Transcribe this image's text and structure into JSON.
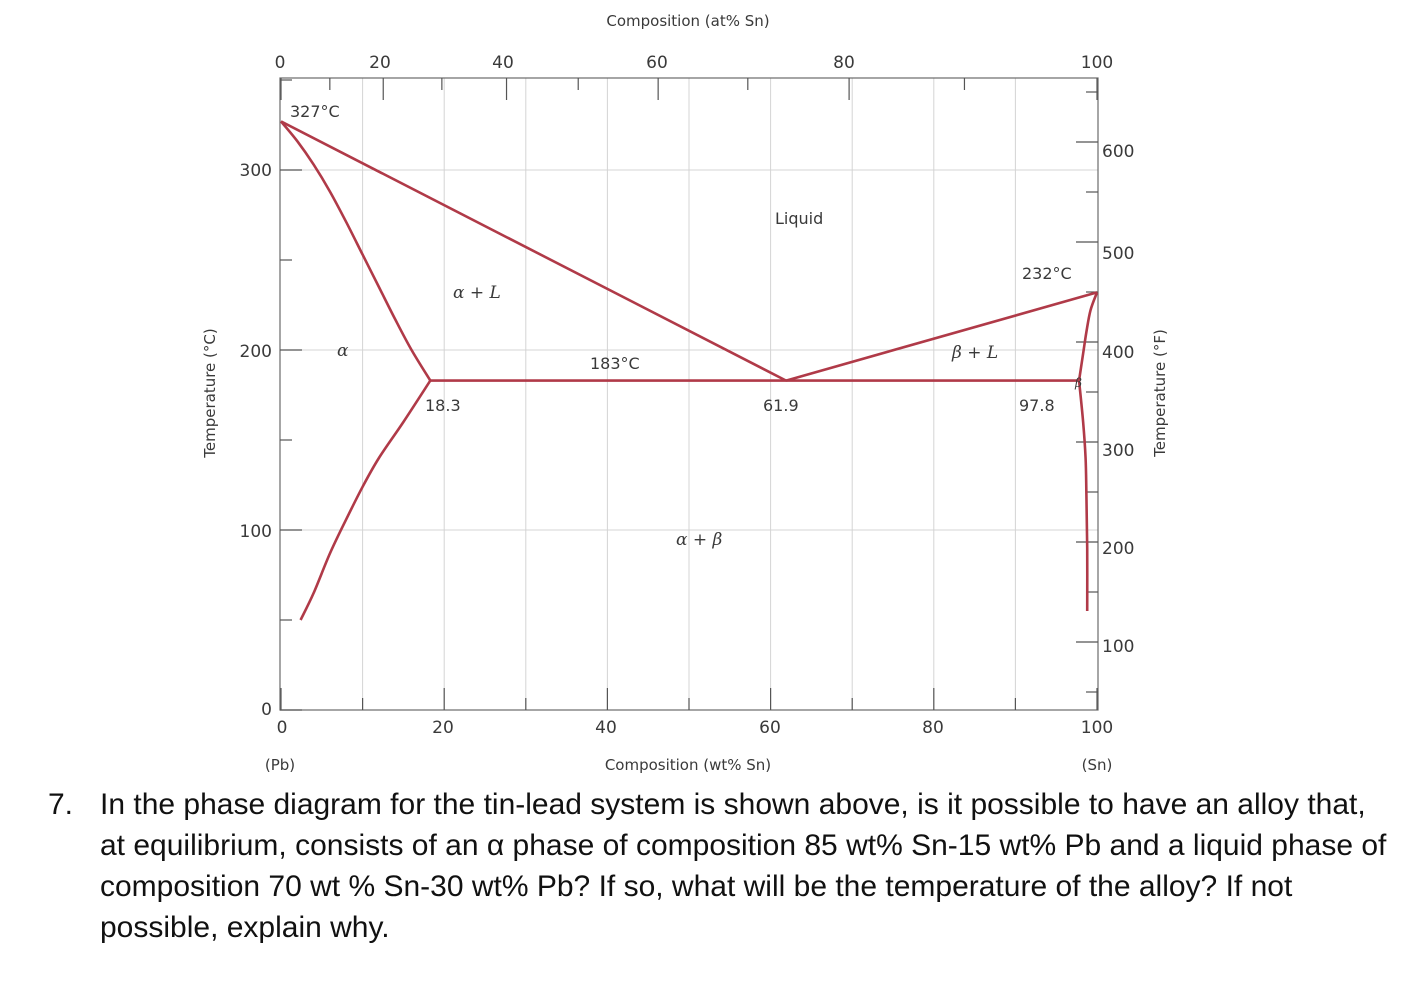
{
  "chart_data": {
    "type": "phase-diagram",
    "system": "Sn-Pb",
    "axes": {
      "x_bottom": {
        "label": "Composition (wt% Sn)",
        "range": [
          0,
          100
        ],
        "ticks": [
          0,
          20,
          40,
          60,
          80,
          100
        ],
        "end_labels": [
          "(Pb)",
          "(Sn)"
        ]
      },
      "x_top": {
        "label": "Composition (at% Sn)",
        "ticks": [
          0,
          20,
          40,
          60,
          80,
          100
        ]
      },
      "y_left": {
        "label": "Temperature (°C)",
        "range": [
          0,
          350
        ],
        "ticks": [
          0,
          100,
          200,
          300
        ]
      },
      "y_right": {
        "label": "Temperature (°F)",
        "ticks": [
          100,
          200,
          300,
          400,
          500,
          600
        ]
      }
    },
    "grid": true,
    "line_color": "#b03a48",
    "key_points": {
      "pb_melting": {
        "x": 0,
        "y": 327
      },
      "sn_melting": {
        "x": 100,
        "y": 232
      },
      "eutectic": {
        "x": 61.9,
        "y": 183
      },
      "alpha_max_solubility": {
        "x": 18.3,
        "y": 183
      },
      "beta_max_solubility": {
        "x": 97.8,
        "y": 183
      }
    },
    "curves": {
      "liquidus_left": [
        [
          0,
          327
        ],
        [
          61.9,
          183
        ]
      ],
      "liquidus_right": [
        [
          61.9,
          183
        ],
        [
          100,
          232
        ]
      ],
      "eutectic_isotherm": [
        [
          18.3,
          183
        ],
        [
          97.8,
          183
        ]
      ],
      "solidus_alpha": [
        [
          0,
          327
        ],
        [
          2,
          316
        ],
        [
          4,
          303
        ],
        [
          6,
          288
        ],
        [
          8,
          271
        ],
        [
          10,
          253
        ],
        [
          12,
          235
        ],
        [
          14,
          217
        ],
        [
          16,
          200
        ],
        [
          18.3,
          183
        ]
      ],
      "solvus_alpha": [
        [
          18.3,
          183
        ],
        [
          15,
          160
        ],
        [
          12,
          140
        ],
        [
          10,
          124
        ],
        [
          8,
          106
        ],
        [
          6,
          87
        ],
        [
          4,
          65
        ],
        [
          2.4,
          50
        ]
      ],
      "solidus_beta": [
        [
          100,
          232
        ],
        [
          99.2,
          222
        ],
        [
          98.7,
          210
        ],
        [
          98.3,
          198
        ],
        [
          97.8,
          183
        ]
      ],
      "solvus_beta": [
        [
          97.8,
          183
        ],
        [
          98.3,
          160
        ],
        [
          98.6,
          140
        ],
        [
          98.7,
          120
        ],
        [
          98.8,
          90
        ],
        [
          98.8,
          55
        ]
      ]
    },
    "annotations": {
      "pb_melt": "327°C",
      "sn_melt": "232°C",
      "eutectic_temp": "183°C",
      "alpha_comp": "18.3",
      "eutectic_comp": "61.9",
      "beta_comp": "97.8",
      "liquid": "Liquid",
      "alpha": "α",
      "beta": "β",
      "alpha_plus_liquid": "α + L",
      "beta_plus_liquid": "β + L",
      "alpha_plus_beta": "α + β"
    },
    "tick_texts": {
      "left": [
        "0",
        "100",
        "200",
        "300"
      ],
      "right": [
        "100",
        "200",
        "300",
        "400",
        "500",
        "600"
      ],
      "bottom": [
        "0",
        "20",
        "40",
        "60",
        "80",
        "100"
      ],
      "top": [
        "0",
        "20",
        "40",
        "60",
        "80",
        "100"
      ]
    }
  },
  "question": {
    "number": "7.",
    "text": "In the phase diagram for the tin-lead system is shown above, is it possible to have an alloy that, at equilibrium, consists of an α phase of composition 85 wt% Sn-15 wt% Pb and a liquid phase of composition 70 wt % Sn-30 wt% Pb? If so, what will be the temperature of the alloy? If not possible, explain why."
  }
}
